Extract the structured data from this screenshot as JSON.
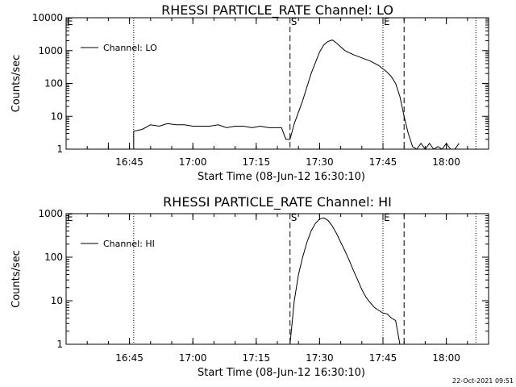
{
  "footer": {
    "timestamp": "22-Oct-2021 09:51"
  },
  "chart_data": [
    {
      "type": "line",
      "title": "RHESSI PARTICLE_RATE Channel: LO",
      "xlabel": "Start Time (08-Jun-12 16:30:10)",
      "ylabel": "Counts/sec",
      "yscale": "log",
      "xlim": [
        "16:30",
        "18:10"
      ],
      "ylim": [
        1,
        10000
      ],
      "xticks": [
        "16:45",
        "17:00",
        "17:15",
        "17:30",
        "17:45",
        "18:00"
      ],
      "yticks": [
        "1",
        "10",
        "100",
        "1000",
        "10000"
      ],
      "legend": {
        "position": "top-left",
        "entries": [
          "Channel: LO"
        ]
      },
      "color": "#000000",
      "markers": {
        "dotted": [
          "16:46",
          "17:45",
          "18:07"
        ],
        "dashed": [
          "17:23",
          "17:50"
        ],
        "labels": [
          {
            "text": "E",
            "x": "16:30"
          },
          {
            "text": "S",
            "x": "17:23"
          },
          {
            "text": "E",
            "x": "17:45"
          }
        ]
      },
      "series": [
        {
          "x": [
            "16:40",
            "16:40",
            "16:40",
            "16:42",
            "16:46",
            "16:46",
            "16:48",
            "16:50",
            "16:52",
            "16:54",
            "16:56",
            "16:58",
            "17:00",
            "17:02",
            "17:04",
            "17:06",
            "17:08",
            "17:10",
            "17:12",
            "17:14",
            "17:16",
            "17:18",
            "17:20",
            "17:21",
            "17:22",
            "17:23",
            "17:24",
            "17:26",
            "17:28",
            "17:30",
            "17:31",
            "17:32",
            "17:33",
            "17:34",
            "17:35",
            "17:36",
            "17:38",
            "17:40",
            "17:42",
            "17:44",
            "17:46",
            "17:47",
            "17:48",
            "17:49",
            "17:50",
            "17:51",
            "17:52",
            "17:53",
            "17:54",
            "17:55",
            "17:56",
            "17:57",
            "17:58",
            "17:59",
            "18:00",
            "18:01",
            "18:02",
            "18:03"
          ],
          "y": [
            1,
            1.6,
            1,
            1,
            1,
            3.5,
            4,
            5.5,
            5,
            6,
            5.5,
            5.5,
            5,
            5,
            5,
            5.5,
            4.5,
            5,
            5,
            4.5,
            5,
            4.5,
            4.5,
            4.5,
            2,
            2,
            6,
            30,
            200,
            900,
            1500,
            1900,
            2100,
            1700,
            1300,
            1000,
            750,
            600,
            480,
            350,
            220,
            160,
            100,
            40,
            10,
            3,
            1.2,
            1,
            1.5,
            1,
            1.5,
            1,
            1.2,
            1,
            1.5,
            1,
            1,
            1.5
          ]
        }
      ]
    },
    {
      "type": "line",
      "title": "RHESSI PARTICLE_RATE Channel: HI",
      "xlabel": "Start Time (08-Jun-12 16:30:10)",
      "ylabel": "Counts/sec",
      "yscale": "log",
      "xlim": [
        "16:30",
        "18:10"
      ],
      "ylim": [
        1,
        1000
      ],
      "xticks": [
        "16:45",
        "17:00",
        "17:15",
        "17:30",
        "17:45",
        "18:00"
      ],
      "yticks": [
        "1",
        "10",
        "100",
        "1000"
      ],
      "legend": {
        "position": "top-left",
        "entries": [
          "Channel: HI"
        ]
      },
      "color": "#000000",
      "markers": {
        "dotted": [
          "16:46",
          "17:45",
          "18:07"
        ],
        "dashed": [
          "17:23",
          "17:50"
        ],
        "labels": [
          {
            "text": "E",
            "x": "16:30"
          },
          {
            "text": "S",
            "x": "17:23"
          },
          {
            "text": "E",
            "x": "17:45"
          }
        ]
      },
      "series": [
        {
          "x": [
            "17:23",
            "17:24",
            "17:25",
            "17:26",
            "17:27",
            "17:28",
            "17:29",
            "17:30",
            "17:31",
            "17:32",
            "17:33",
            "17:34",
            "17:35",
            "17:36",
            "17:37",
            "17:38",
            "17:39",
            "17:40",
            "17:41",
            "17:42",
            "17:43",
            "17:44",
            "17:45",
            "17:46",
            "17:47",
            "17:48",
            "17:49"
          ],
          "y": [
            1,
            10,
            40,
            100,
            220,
            400,
            600,
            750,
            800,
            700,
            520,
            350,
            220,
            140,
            85,
            50,
            30,
            18,
            12,
            9,
            7,
            6,
            5.2,
            5,
            4,
            3.5,
            1
          ]
        }
      ]
    }
  ]
}
